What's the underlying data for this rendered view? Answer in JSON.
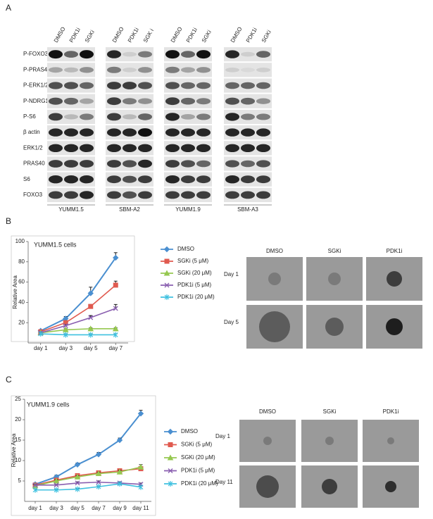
{
  "panel_a": {
    "label": "A",
    "lanes": [
      [
        "DMSO",
        "PDK1i",
        "SGKi"
      ],
      [
        "DMSO",
        "PDK1i",
        "SGK i"
      ],
      [
        "DMSO",
        "PDK1i",
        "SGKi"
      ],
      [
        "DMSO",
        "PDK1i",
        "SGKi"
      ]
    ],
    "rows": [
      "P-FOXO3",
      "P-PRAS40",
      "P-ERK1/2",
      "P-NDRG1",
      "P-S6",
      "β actin",
      "ERK1/2",
      "PRAS40",
      "S6",
      "FOXO3"
    ],
    "cell_lines": [
      "YUMM1.5",
      "SBM-A2",
      "YUMM1.9",
      "SBM-A3"
    ]
  },
  "panel_b": {
    "label": "B",
    "images": {
      "columns": [
        "DMSO",
        "SGKi",
        "PDK1i"
      ],
      "rows": [
        "Day 1",
        "Day 5"
      ]
    }
  },
  "panel_c": {
    "label": "C",
    "images": {
      "columns": [
        "DMSO",
        "SGKi",
        "PDK1i"
      ],
      "rows": [
        "Day 1",
        "Day 11"
      ]
    }
  },
  "chart_data": [
    {
      "type": "line",
      "title": "YUMM1.5 cells",
      "y_label": "Relative Area",
      "categories": [
        "day 1",
        "day 3",
        "day 5",
        "day 7"
      ],
      "ylim": [
        0,
        100
      ],
      "yticks": [
        20,
        40,
        60,
        80,
        100
      ],
      "series": [
        {
          "name": "DMSO",
          "color": "#4a8fd0",
          "values": [
            12,
            24,
            49,
            84
          ],
          "errors": [
            1,
            2,
            6,
            5
          ]
        },
        {
          "name": "SGKi (5 μM)",
          "color": "#e05a4f",
          "values": [
            11,
            20,
            36,
            57
          ],
          "errors": [
            1,
            2,
            2,
            4
          ]
        },
        {
          "name": "SGKi (20 μM)",
          "color": "#96c850",
          "values": [
            10,
            13,
            14,
            14
          ],
          "errors": [
            1,
            1,
            1,
            1
          ]
        },
        {
          "name": "PDK1i (5 μM)",
          "color": "#8a5fb0",
          "values": [
            10,
            17,
            25,
            34
          ],
          "errors": [
            1,
            1,
            2,
            4
          ]
        },
        {
          "name": "PDK1i (20 μM)",
          "color": "#3fc1e0",
          "values": [
            9,
            8,
            8,
            8
          ],
          "errors": [
            1,
            1,
            1,
            1
          ]
        }
      ]
    },
    {
      "type": "line",
      "title": "YUMM1.9 cells",
      "y_label": "Relative Area",
      "categories": [
        "day 1",
        "day 3",
        "day 5",
        "day 7",
        "day 9",
        "day 11"
      ],
      "ylim": [
        0,
        25
      ],
      "yticks": [
        5,
        10,
        15,
        20,
        25
      ],
      "series": [
        {
          "name": "DMSO",
          "color": "#4a8fd0",
          "values": [
            4.2,
            6,
            9,
            11.5,
            15,
            21.5
          ],
          "errors": [
            0.3,
            0.4,
            0.4,
            0.5,
            0.5,
            0.8
          ]
        },
        {
          "name": "SGKi (5 μM)",
          "color": "#e05a4f",
          "values": [
            4,
            5.2,
            6.3,
            7,
            7.5,
            8
          ],
          "errors": [
            0.3,
            0.3,
            0.3,
            0.4,
            0.4,
            0.5
          ]
        },
        {
          "name": "SGKi (20 μM)",
          "color": "#96c850",
          "values": [
            3.8,
            5,
            6,
            6.8,
            7.2,
            8.4
          ],
          "errors": [
            0.3,
            0.3,
            0.3,
            0.3,
            0.4,
            0.6
          ]
        },
        {
          "name": "PDK1i (5 μM)",
          "color": "#8a5fb0",
          "values": [
            4,
            4,
            4.5,
            4.7,
            4.5,
            4.2
          ],
          "errors": [
            0.2,
            0.2,
            0.3,
            0.3,
            0.3,
            0.3
          ]
        },
        {
          "name": "PDK1i (20 μM)",
          "color": "#3fc1e0",
          "values": [
            2.8,
            2.8,
            3,
            3.6,
            4.3,
            3.5
          ],
          "errors": [
            0.2,
            0.2,
            0.2,
            0.2,
            0.3,
            0.3
          ]
        }
      ]
    }
  ]
}
